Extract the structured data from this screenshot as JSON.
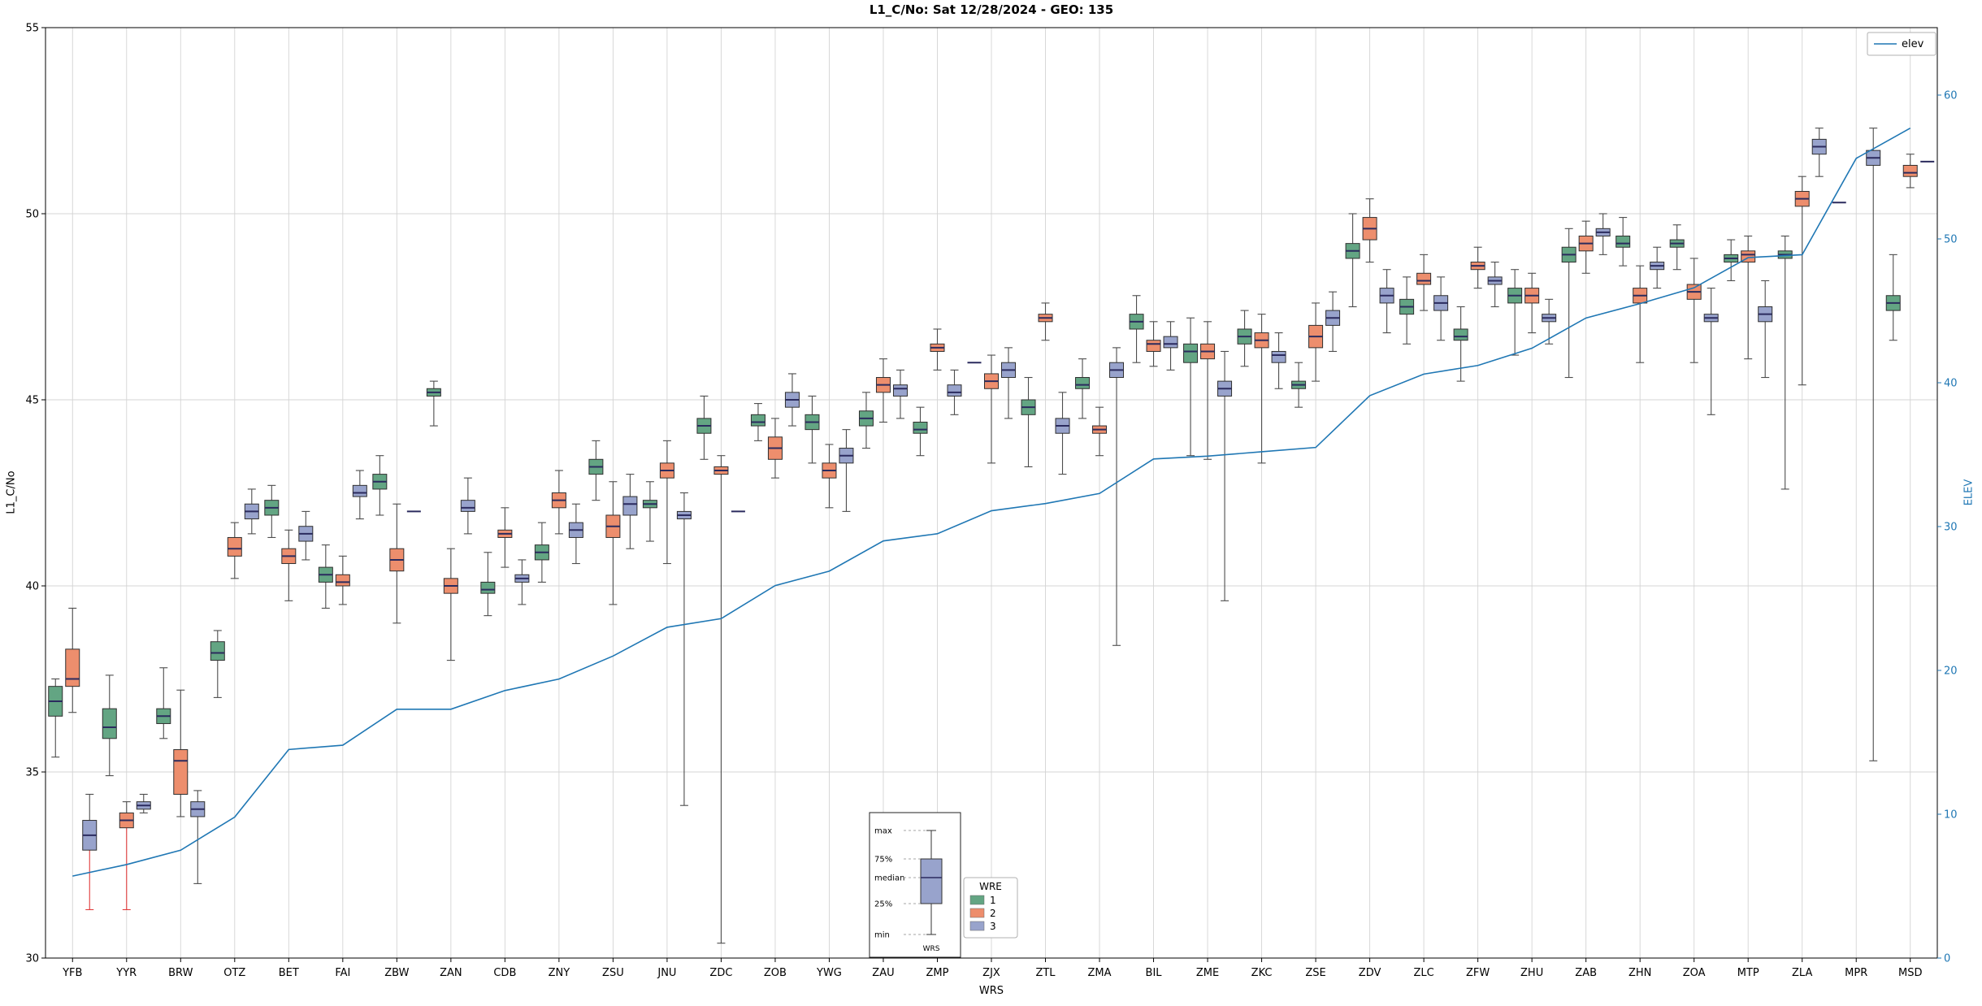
{
  "chart_data": {
    "type": "boxplot+line",
    "title": "L1_C/No: Sat 12/28/2024 - GEO: 135",
    "xlabel": "WRS",
    "ylabel_left": "L1_C/No",
    "ylabel_right": "ELEV",
    "ylim_left": [
      30,
      55
    ],
    "yticks_left": [
      30,
      35,
      40,
      45,
      50,
      55
    ],
    "ylim_right": [
      0,
      60
    ],
    "yticks_right": [
      0,
      10,
      20,
      30,
      40,
      50,
      60
    ],
    "grid": true,
    "right_axis_color": "#1f77b4",
    "categories": [
      "YFB",
      "YYR",
      "BRW",
      "OTZ",
      "BET",
      "FAI",
      "ZBW",
      "ZAN",
      "CDB",
      "ZNY",
      "ZSU",
      "JNU",
      "ZDC",
      "ZOB",
      "YWG",
      "ZAU",
      "ZMP",
      "ZJX",
      "ZTL",
      "ZMA",
      "BIL",
      "ZME",
      "ZKC",
      "ZSE",
      "ZDV",
      "ZLC",
      "ZFW",
      "ZHU",
      "ZAB",
      "ZHN",
      "ZOA",
      "MTP",
      "ZLA",
      "MPR",
      "MSD"
    ],
    "group_legend_title": "WRE",
    "groups": [
      {
        "name": "1",
        "color": "#63a583"
      },
      {
        "name": "2",
        "color": "#ed8e6d"
      },
      {
        "name": "3",
        "color": "#98a3cc"
      }
    ],
    "median_color": "#2b2b5e",
    "whisker_color": "#4d4d4d",
    "flagged_whisker_color": "#e03a3a",
    "box_stats": [
      [
        [
          35.4,
          36.5,
          36.9,
          37.3,
          37.5
        ],
        [
          36.6,
          37.3,
          37.5,
          38.3,
          39.4
        ],
        {
          "stats": [
            31.3,
            32.9,
            33.3,
            33.7,
            34.4
          ],
          "whisker_color": "#e03a3a"
        }
      ],
      [
        [
          34.9,
          35.9,
          36.2,
          36.7,
          37.6
        ],
        {
          "stats": [
            31.3,
            33.5,
            33.7,
            33.9,
            34.2
          ],
          "whisker_color": "#e03a3a"
        },
        [
          33.9,
          34.0,
          34.1,
          34.2,
          34.4
        ]
      ],
      [
        [
          35.9,
          36.3,
          36.5,
          36.7,
          37.8
        ],
        [
          33.8,
          34.4,
          35.3,
          35.6,
          37.2
        ],
        [
          32.0,
          33.8,
          34.0,
          34.2,
          34.5
        ]
      ],
      [
        [
          37.0,
          38.0,
          38.2,
          38.5,
          38.8
        ],
        [
          40.2,
          40.8,
          41.0,
          41.3,
          41.7
        ],
        [
          41.4,
          41.8,
          42.0,
          42.2,
          42.6
        ]
      ],
      [
        [
          41.3,
          41.9,
          42.1,
          42.3,
          42.7
        ],
        [
          39.6,
          40.6,
          40.8,
          41.0,
          41.5
        ],
        [
          40.7,
          41.2,
          41.4,
          41.6,
          42.0
        ]
      ],
      [
        [
          39.4,
          40.1,
          40.3,
          40.5,
          41.1
        ],
        [
          39.5,
          40.0,
          40.1,
          40.3,
          40.8
        ],
        [
          41.8,
          42.4,
          42.5,
          42.7,
          43.1
        ]
      ],
      [
        [
          41.9,
          42.6,
          42.8,
          43.0,
          43.5
        ],
        [
          39.0,
          40.4,
          40.7,
          41.0,
          42.2
        ],
        [
          42.0,
          42.0,
          42.0,
          42.0,
          42.0
        ]
      ],
      [
        [
          44.3,
          45.1,
          45.2,
          45.3,
          45.5
        ],
        [
          38.0,
          39.8,
          40.0,
          40.2,
          41.0
        ],
        [
          41.4,
          42.0,
          42.1,
          42.3,
          42.9
        ]
      ],
      [
        [
          39.2,
          39.8,
          39.9,
          40.1,
          40.9
        ],
        [
          40.5,
          41.3,
          41.4,
          41.5,
          42.1
        ],
        [
          39.5,
          40.1,
          40.2,
          40.3,
          40.7
        ]
      ],
      [
        [
          40.1,
          40.7,
          40.9,
          41.1,
          41.7
        ],
        [
          41.4,
          42.1,
          42.3,
          42.5,
          43.1
        ],
        [
          40.6,
          41.3,
          41.5,
          41.7,
          42.2
        ]
      ],
      [
        [
          42.3,
          43.0,
          43.2,
          43.4,
          43.9
        ],
        [
          39.5,
          41.3,
          41.6,
          41.9,
          42.8
        ],
        [
          41.0,
          41.9,
          42.2,
          42.4,
          43.0
        ]
      ],
      [
        [
          41.2,
          42.1,
          42.2,
          42.3,
          42.8
        ],
        [
          40.6,
          42.9,
          43.1,
          43.3,
          43.9
        ],
        [
          34.1,
          41.8,
          41.9,
          42.0,
          42.5
        ]
      ],
      [
        [
          43.4,
          44.1,
          44.3,
          44.5,
          45.1
        ],
        [
          30.4,
          43.0,
          43.1,
          43.2,
          43.5
        ],
        [
          42.0,
          42.0,
          42.0,
          42.0,
          42.0
        ]
      ],
      [
        [
          43.9,
          44.3,
          44.4,
          44.6,
          44.9
        ],
        [
          42.9,
          43.4,
          43.7,
          44.0,
          44.5
        ],
        [
          44.3,
          44.8,
          45.0,
          45.2,
          45.7
        ]
      ],
      [
        [
          43.3,
          44.2,
          44.4,
          44.6,
          45.1
        ],
        [
          42.1,
          42.9,
          43.1,
          43.3,
          43.8
        ],
        [
          42.0,
          43.3,
          43.5,
          43.7,
          44.2
        ]
      ],
      [
        [
          43.7,
          44.3,
          44.5,
          44.7,
          45.2
        ],
        [
          44.4,
          45.2,
          45.4,
          45.6,
          46.1
        ],
        [
          44.5,
          45.1,
          45.3,
          45.4,
          45.8
        ]
      ],
      [
        [
          43.5,
          44.1,
          44.2,
          44.4,
          44.8
        ],
        [
          45.8,
          46.3,
          46.4,
          46.5,
          46.9
        ],
        [
          44.6,
          45.1,
          45.2,
          45.4,
          45.8
        ]
      ],
      [
        [
          46.0,
          46.0,
          46.0,
          46.0,
          46.0
        ],
        [
          43.3,
          45.3,
          45.5,
          45.7,
          46.2
        ],
        [
          44.5,
          45.6,
          45.8,
          46.0,
          46.4
        ]
      ],
      [
        [
          43.2,
          44.6,
          44.8,
          45.0,
          45.6
        ],
        [
          46.6,
          47.1,
          47.2,
          47.3,
          47.6
        ],
        [
          43.0,
          44.1,
          44.3,
          44.5,
          45.2
        ]
      ],
      [
        [
          44.5,
          45.3,
          45.4,
          45.6,
          46.1
        ],
        [
          43.5,
          44.1,
          44.2,
          44.3,
          44.8
        ],
        [
          38.4,
          45.6,
          45.8,
          46.0,
          46.4
        ]
      ],
      [
        [
          46.0,
          46.9,
          47.1,
          47.3,
          47.8
        ],
        [
          45.9,
          46.3,
          46.5,
          46.6,
          47.1
        ],
        [
          45.8,
          46.4,
          46.5,
          46.7,
          47.1
        ]
      ],
      [
        [
          43.5,
          46.0,
          46.3,
          46.5,
          47.2
        ],
        [
          43.4,
          46.1,
          46.3,
          46.5,
          47.1
        ],
        [
          39.6,
          45.1,
          45.3,
          45.5,
          46.3
        ]
      ],
      [
        [
          45.9,
          46.5,
          46.7,
          46.9,
          47.4
        ],
        [
          43.3,
          46.4,
          46.6,
          46.8,
          47.3
        ],
        [
          45.3,
          46.0,
          46.2,
          46.3,
          46.8
        ]
      ],
      [
        [
          44.8,
          45.3,
          45.4,
          45.5,
          46.0
        ],
        [
          45.5,
          46.4,
          46.7,
          47.0,
          47.6
        ],
        [
          46.3,
          47.0,
          47.2,
          47.4,
          47.9
        ]
      ],
      [
        [
          47.5,
          48.8,
          49.0,
          49.2,
          50.0
        ],
        [
          48.7,
          49.3,
          49.6,
          49.9,
          50.4
        ],
        [
          46.8,
          47.6,
          47.8,
          48.0,
          48.5
        ]
      ],
      [
        [
          46.5,
          47.3,
          47.5,
          47.7,
          48.3
        ],
        [
          47.4,
          48.1,
          48.2,
          48.4,
          48.9
        ],
        [
          46.6,
          47.4,
          47.6,
          47.8,
          48.3
        ]
      ],
      [
        [
          45.5,
          46.6,
          46.7,
          46.9,
          47.5
        ],
        [
          48.0,
          48.5,
          48.6,
          48.7,
          49.1
        ],
        [
          47.5,
          48.1,
          48.2,
          48.3,
          48.7
        ]
      ],
      [
        [
          46.2,
          47.6,
          47.8,
          48.0,
          48.5
        ],
        [
          46.8,
          47.6,
          47.8,
          48.0,
          48.4
        ],
        [
          46.5,
          47.1,
          47.2,
          47.3,
          47.7
        ]
      ],
      [
        [
          45.6,
          48.7,
          48.9,
          49.1,
          49.6
        ],
        [
          48.4,
          49.0,
          49.2,
          49.4,
          49.8
        ],
        [
          48.9,
          49.4,
          49.5,
          49.6,
          50.0
        ]
      ],
      [
        [
          48.6,
          49.1,
          49.2,
          49.4,
          49.9
        ],
        [
          46.0,
          47.6,
          47.8,
          48.0,
          48.6
        ],
        [
          48.0,
          48.5,
          48.6,
          48.7,
          49.1
        ]
      ],
      [
        [
          48.5,
          49.1,
          49.2,
          49.3,
          49.7
        ],
        [
          46.0,
          47.7,
          47.9,
          48.1,
          48.8
        ],
        [
          44.6,
          47.1,
          47.2,
          47.3,
          48.0
        ]
      ],
      [
        [
          48.2,
          48.7,
          48.8,
          48.9,
          49.3
        ],
        [
          46.1,
          48.7,
          48.9,
          49.0,
          49.4
        ],
        [
          45.6,
          47.1,
          47.3,
          47.5,
          48.2
        ]
      ],
      [
        [
          42.6,
          48.8,
          48.9,
          49.0,
          49.4
        ],
        [
          45.4,
          50.2,
          50.4,
          50.6,
          51.0
        ],
        [
          51.0,
          51.6,
          51.8,
          52.0,
          52.3
        ]
      ],
      [
        [
          50.3,
          50.3,
          50.3,
          50.3,
          50.3
        ],
        null,
        [
          35.3,
          51.3,
          51.5,
          51.7,
          52.3
        ]
      ],
      [
        [
          46.6,
          47.4,
          47.6,
          47.8,
          48.9
        ],
        [
          50.7,
          51.0,
          51.1,
          51.3,
          51.6
        ],
        [
          51.4,
          51.4,
          51.4,
          51.4,
          51.4
        ]
      ]
    ],
    "line_series": {
      "name": "elev",
      "color": "#1f77b4",
      "values": [
        5.7,
        6.5,
        7.5,
        9.8,
        14.5,
        14.8,
        17.3,
        17.3,
        18.6,
        19.4,
        21.0,
        23.0,
        23.6,
        25.9,
        26.9,
        29.0,
        29.5,
        31.1,
        31.6,
        32.3,
        34.7,
        34.9,
        35.2,
        35.5,
        39.1,
        40.6,
        41.2,
        42.4,
        44.5,
        45.5,
        46.6,
        48.7,
        48.9,
        55.6,
        57.7
      ]
    },
    "legend_elev_label": "elev",
    "inset": {
      "labels": [
        "max",
        "75%",
        "median",
        "25%",
        "min"
      ],
      "xlabel": "WRS"
    }
  }
}
